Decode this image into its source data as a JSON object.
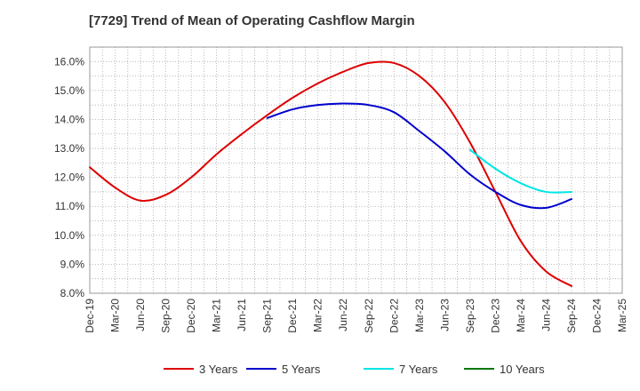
{
  "chart_data": {
    "type": "line",
    "title": "[7729]  Trend of Mean of Operating Cashflow Margin",
    "xlabel": "",
    "ylabel": "",
    "ylim": [
      8.0,
      16.5
    ],
    "y_ticks": [
      8.0,
      9.0,
      10.0,
      11.0,
      12.0,
      13.0,
      14.0,
      15.0,
      16.0
    ],
    "y_tick_labels": [
      "8.0%",
      "9.0%",
      "10.0%",
      "11.0%",
      "12.0%",
      "13.0%",
      "14.0%",
      "15.0%",
      "16.0%"
    ],
    "categories": [
      "Dec-19",
      "Mar-20",
      "Jun-20",
      "Sep-20",
      "Dec-20",
      "Mar-21",
      "Jun-21",
      "Sep-21",
      "Dec-21",
      "Mar-22",
      "Jun-22",
      "Sep-22",
      "Dec-22",
      "Mar-23",
      "Jun-23",
      "Sep-23",
      "Dec-23",
      "Mar-24",
      "Jun-24",
      "Sep-24",
      "Dec-24",
      "Mar-25"
    ],
    "grid": true,
    "legend_position": "bottom",
    "series": [
      {
        "name": "3 Years",
        "color": "#dd0000",
        "values": [
          12.35,
          11.65,
          11.2,
          11.4,
          12.0,
          12.8,
          13.5,
          14.15,
          14.75,
          15.25,
          15.65,
          15.95,
          15.95,
          15.5,
          14.6,
          13.2,
          11.5,
          9.8,
          8.75,
          8.25,
          null,
          null
        ]
      },
      {
        "name": "5 Years",
        "color": "#0000cc",
        "values": [
          null,
          null,
          null,
          null,
          null,
          null,
          null,
          14.05,
          14.35,
          14.5,
          14.55,
          14.5,
          14.25,
          13.6,
          12.9,
          12.1,
          11.5,
          11.05,
          10.95,
          11.25,
          null,
          null
        ]
      },
      {
        "name": "7 Years",
        "color": "#00e5e5",
        "values": [
          null,
          null,
          null,
          null,
          null,
          null,
          null,
          null,
          null,
          null,
          null,
          null,
          null,
          null,
          null,
          12.95,
          12.3,
          11.8,
          11.5,
          11.5,
          null,
          null
        ]
      },
      {
        "name": "10 Years",
        "color": "#007700",
        "values": [
          null,
          null,
          null,
          null,
          null,
          null,
          null,
          null,
          null,
          null,
          null,
          null,
          null,
          null,
          null,
          null,
          null,
          null,
          null,
          null,
          null,
          null
        ]
      }
    ]
  }
}
